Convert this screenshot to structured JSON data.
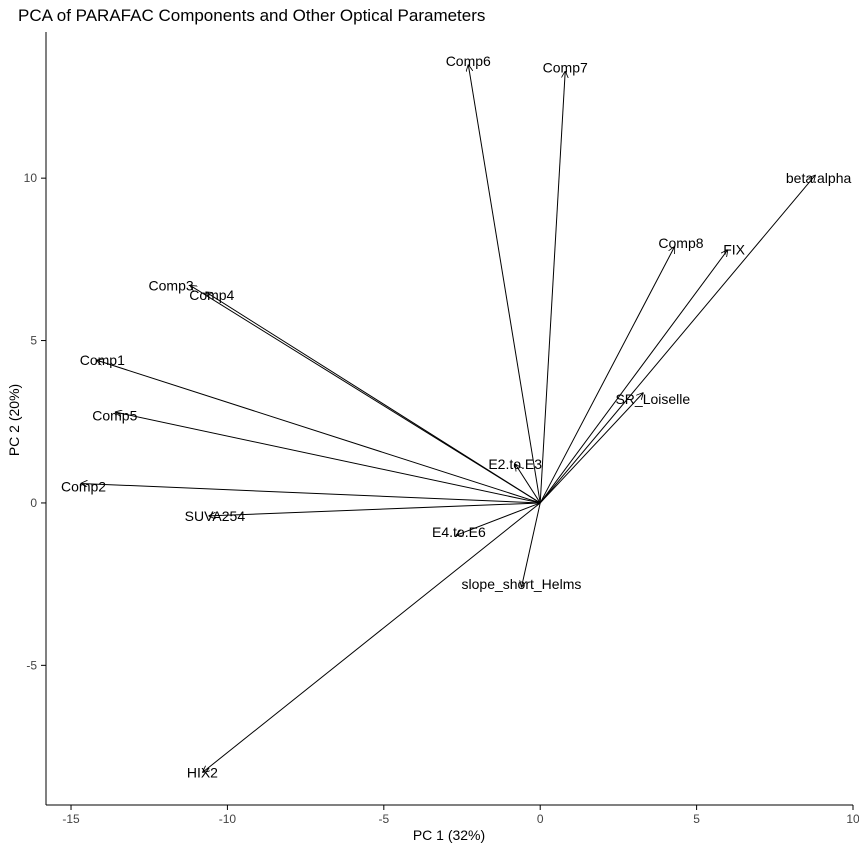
{
  "chart_data": {
    "type": "biplot",
    "title": "PCA of PARAFAC Components and Other Optical Parameters",
    "xlabel": "PC 1 (32%)",
    "ylabel": "PC 2 (20%)",
    "xlim": [
      -15.8,
      10
    ],
    "ylim": [
      -9.3,
      14.5
    ],
    "xticks": [
      -15,
      -10,
      -5,
      0,
      5,
      10
    ],
    "yticks": [
      -5,
      0,
      5,
      10
    ],
    "grid": false,
    "origin": [
      0,
      0
    ],
    "vectors": [
      {
        "name": "Comp6",
        "x": -2.3,
        "y": 13.5
      },
      {
        "name": "Comp7",
        "x": 0.8,
        "y": 13.3
      },
      {
        "name": "beta.alpha",
        "x": 8.8,
        "y": 10.1
      },
      {
        "name": "FIX",
        "x": 6.0,
        "y": 7.8
      },
      {
        "name": "Comp8",
        "x": 4.3,
        "y": 7.9
      },
      {
        "name": "Comp3",
        "x": -11.2,
        "y": 6.7
      },
      {
        "name": "Comp4",
        "x": -10.7,
        "y": 6.5
      },
      {
        "name": "Comp1",
        "x": -14.2,
        "y": 4.4
      },
      {
        "name": "SR_Loiselle",
        "x": 3.3,
        "y": 3.4
      },
      {
        "name": "Comp5",
        "x": -13.6,
        "y": 2.8
      },
      {
        "name": "E2.to.E3",
        "x": -0.8,
        "y": 1.2
      },
      {
        "name": "Comp2",
        "x": -14.7,
        "y": 0.6
      },
      {
        "name": "SUVA254",
        "x": -10.6,
        "y": -0.4
      },
      {
        "name": "E4.to.E6",
        "x": -2.7,
        "y": -1.0
      },
      {
        "name": "slope_short_Helms",
        "x": -0.6,
        "y": -2.6
      },
      {
        "name": "HIX2",
        "x": -10.8,
        "y": -8.3
      }
    ],
    "labels": [
      {
        "text": "Comp6",
        "x": -2.3,
        "y": 13.6
      },
      {
        "text": "Comp7",
        "x": 0.8,
        "y": 13.4
      },
      {
        "text": "beta.alpha",
        "x": 8.9,
        "y": 10.0
      },
      {
        "text": "FIX",
        "x": 6.2,
        "y": 7.8
      },
      {
        "text": "Comp8",
        "x": 4.5,
        "y": 8.0
      },
      {
        "text": "Comp3",
        "x": -11.8,
        "y": 6.7
      },
      {
        "text": "Comp4",
        "x": -10.5,
        "y": 6.4
      },
      {
        "text": "Comp1",
        "x": -14.0,
        "y": 4.4
      },
      {
        "text": "SR_Loiselle",
        "x": 3.6,
        "y": 3.2
      },
      {
        "text": "Comp5",
        "x": -13.6,
        "y": 2.7
      },
      {
        "text": "E2.to.E3",
        "x": -0.8,
        "y": 1.2
      },
      {
        "text": "Comp2",
        "x": -14.6,
        "y": 0.5
      },
      {
        "text": "SUVA254",
        "x": -10.4,
        "y": -0.4
      },
      {
        "text": "E4.to.E6",
        "x": -2.6,
        "y": -0.9
      },
      {
        "text": "slope_short_Helms",
        "x": -0.6,
        "y": -2.5
      },
      {
        "text": "HIX2",
        "x": -10.8,
        "y": -8.3
      }
    ]
  }
}
